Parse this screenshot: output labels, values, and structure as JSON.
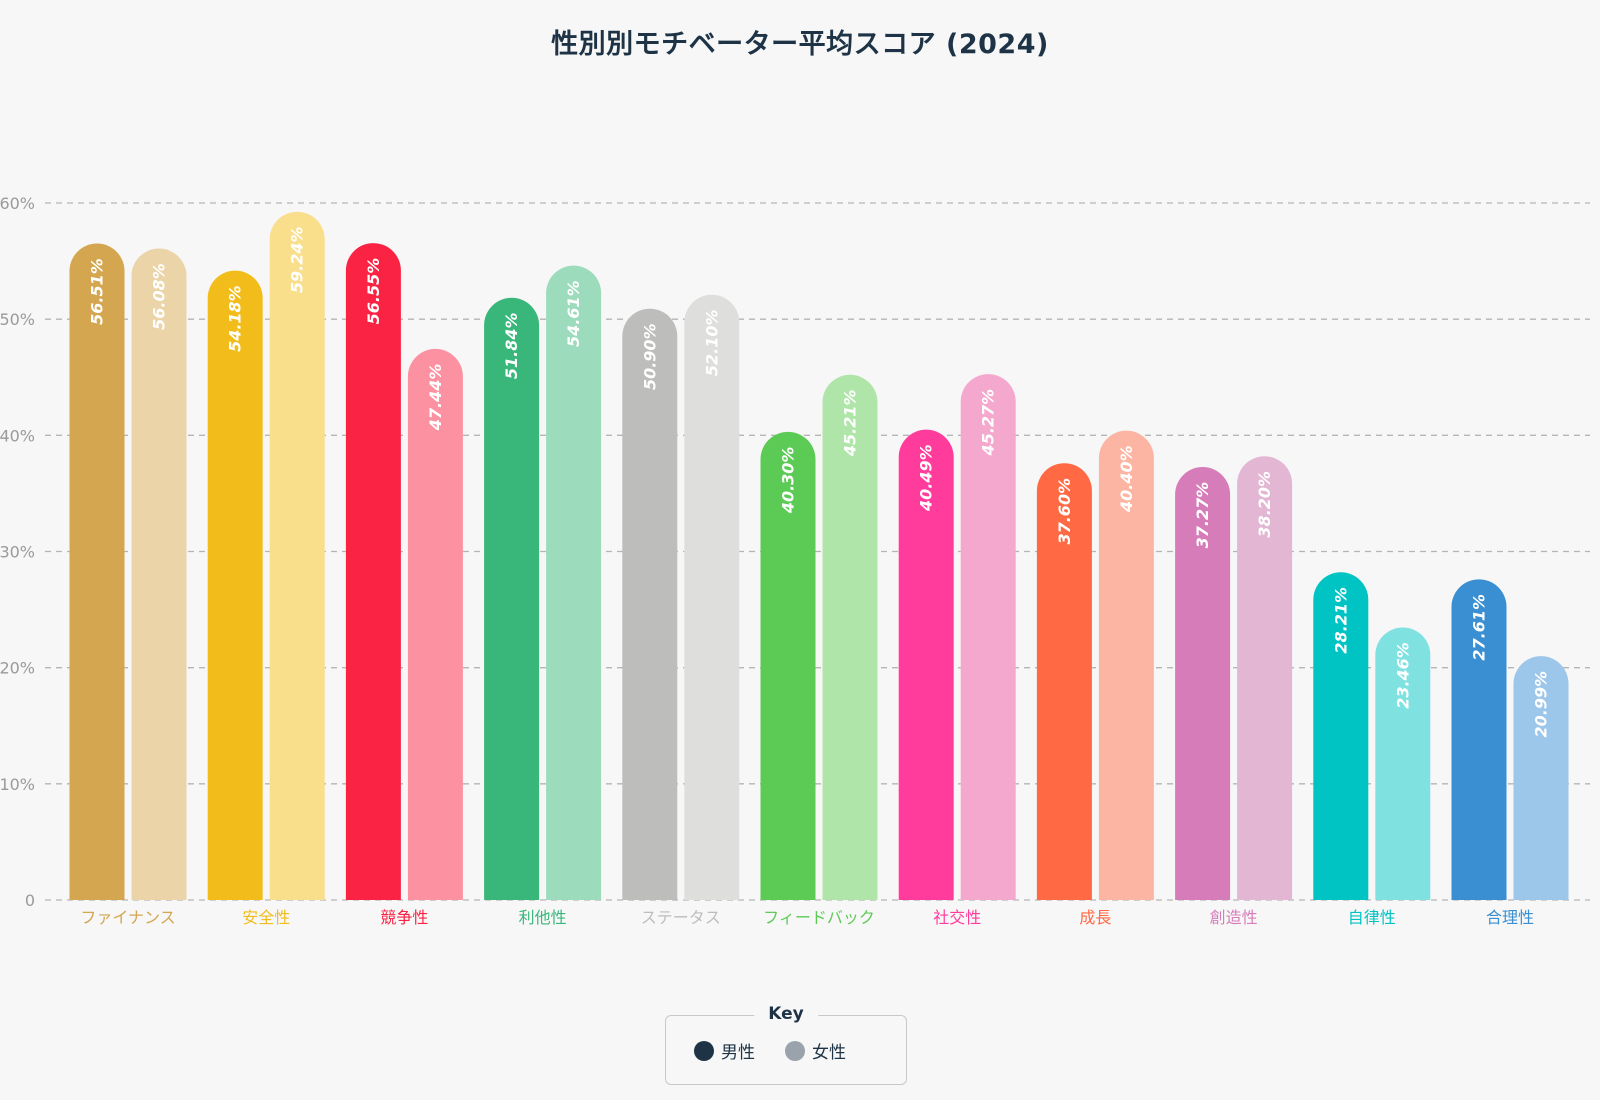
{
  "chart_data": {
    "type": "bar",
    "title": "性別別モチベーター平均スコア (2024)",
    "ylim": [
      0,
      60
    ],
    "yticks": [
      "0",
      "10%",
      "20%",
      "30%",
      "40%",
      "50%",
      "60%"
    ],
    "grid": true,
    "legend_placement": "bottom-center",
    "categories": [
      "ファイナンス",
      "安全性",
      "競争性",
      "利他性",
      "ステータス",
      "フィードバック",
      "社交性",
      "成長",
      "創造性",
      "自律性",
      "合理性"
    ],
    "category_colors": [
      "#d4a64f",
      "#f2bd1a",
      "#fb2344",
      "#39b77a",
      "#bdbdbc",
      "#5ccb55",
      "#ff3c9c",
      "#ff6a45",
      "#d67cb9",
      "#00c4c4",
      "#3a8fd2"
    ],
    "light_colors": [
      "#ebd4a8",
      "#f9de8b",
      "#fc91a2",
      "#9cdbbc",
      "#dededd",
      "#b0e5aa",
      "#f5a8cd",
      "#fcb5a2",
      "#e3b7d3",
      "#80e1e1",
      "#9cc6ea"
    ],
    "series": [
      {
        "name": "男性",
        "values": [
          56.51,
          54.18,
          56.55,
          51.84,
          50.9,
          40.3,
          40.49,
          37.6,
          37.27,
          28.21,
          27.61
        ],
        "labels": [
          "56.51%",
          "54.18%",
          "56.55%",
          "51.84%",
          "50.90%",
          "40.30%",
          "40.49%",
          "37.60%",
          "37.27%",
          "28.21%",
          "27.61%"
        ]
      },
      {
        "name": "女性",
        "values": [
          56.08,
          59.24,
          47.44,
          54.61,
          52.1,
          45.21,
          45.27,
          40.4,
          38.2,
          23.46,
          20.99
        ],
        "labels": [
          "56.08%",
          "59.24%",
          "47.44%",
          "54.61%",
          "52.10%",
          "45.21%",
          "45.27%",
          "40.40%",
          "38.20%",
          "23.46%",
          "20.99%"
        ]
      }
    ]
  },
  "legend": {
    "title": "Key",
    "items": [
      {
        "label": "男性",
        "color": "#1e3446"
      },
      {
        "label": "女性",
        "color": "#9aa3ab"
      }
    ]
  },
  "colors": {
    "title": "#1e3446",
    "grid": "#b5b5b5",
    "axis_text": "#9a9a9a",
    "background": "#f7f7f7"
  }
}
